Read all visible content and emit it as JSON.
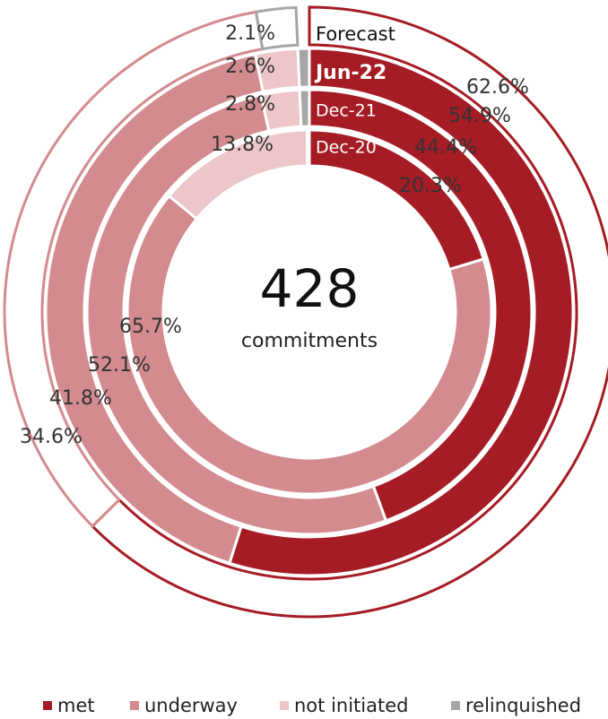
{
  "chart_data": {
    "type": "donut",
    "categories": [
      "met",
      "underway",
      "not initiated",
      "relinquished"
    ],
    "colors": [
      "#a51c24",
      "#d38b8f",
      "#ecc6c8",
      "#a6a6a6"
    ],
    "rings": [
      {
        "name": "Forecast",
        "values": [
          62.6,
          34.6,
          null,
          2.1
        ],
        "value_labels": [
          "62.6%",
          "34.6%",
          null,
          "2.1%"
        ]
      },
      {
        "name": "Jun-22",
        "values": [
          54.9,
          41.8,
          2.6,
          0.7
        ],
        "value_labels": [
          "54.9%",
          "41.8%",
          "2.6%",
          null
        ]
      },
      {
        "name": "Dec-21",
        "values": [
          44.4,
          52.1,
          2.8,
          0.7
        ],
        "value_labels": [
          "44.4%",
          "52.1%",
          "2.8%",
          null
        ]
      },
      {
        "name": "Dec-20",
        "values": [
          20.3,
          65.7,
          13.8,
          0.2
        ],
        "value_labels": [
          "20.3%",
          "65.7%",
          "13.8%",
          null
        ]
      }
    ],
    "center_value": 428,
    "center_label": "commitments"
  }
}
